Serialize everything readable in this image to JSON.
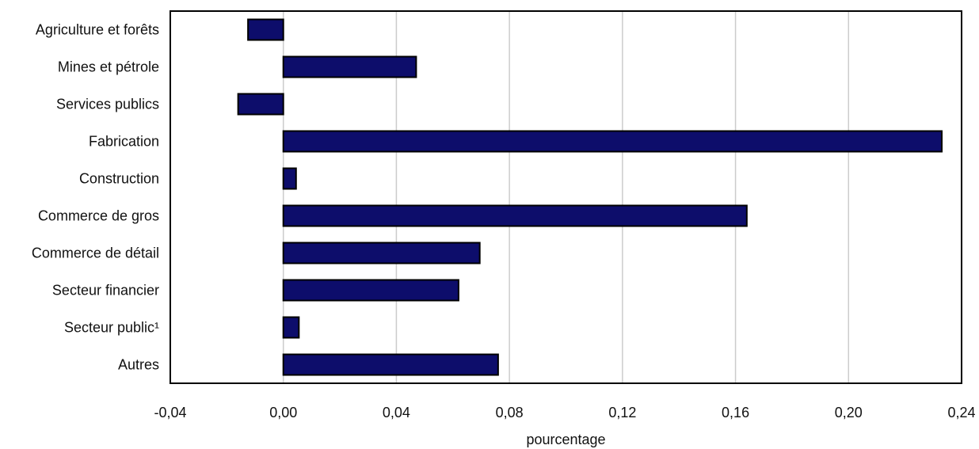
{
  "chart_data": {
    "type": "bar",
    "orientation": "horizontal",
    "categories": [
      "Agriculture et forêts",
      "Mines et pétrole",
      "Services publics",
      "Fabrication",
      "Construction",
      "Commerce de gros",
      "Commerce de détail",
      "Secteur financier",
      "Secteur public¹",
      "Autres"
    ],
    "values": [
      -0.0125,
      0.047,
      -0.016,
      0.233,
      0.0045,
      0.164,
      0.0695,
      0.062,
      0.0055,
      0.076
    ],
    "xlabel": "pourcentage",
    "ylabel": "",
    "xlim": [
      -0.04,
      0.24
    ],
    "xticks": [
      -0.04,
      0.0,
      0.04,
      0.08,
      0.12,
      0.16,
      0.2,
      0.24
    ],
    "xtick_labels": [
      "-0,04",
      "0,00",
      "0,04",
      "0,08",
      "0,12",
      "0,16",
      "0,20",
      "0,24"
    ],
    "grid": "vertical",
    "legend": "none",
    "colors": {
      "bar_fill": "#0d0d6b",
      "bar_stroke": "#000000",
      "grid": "#cccccc",
      "frame": "#000000"
    }
  }
}
